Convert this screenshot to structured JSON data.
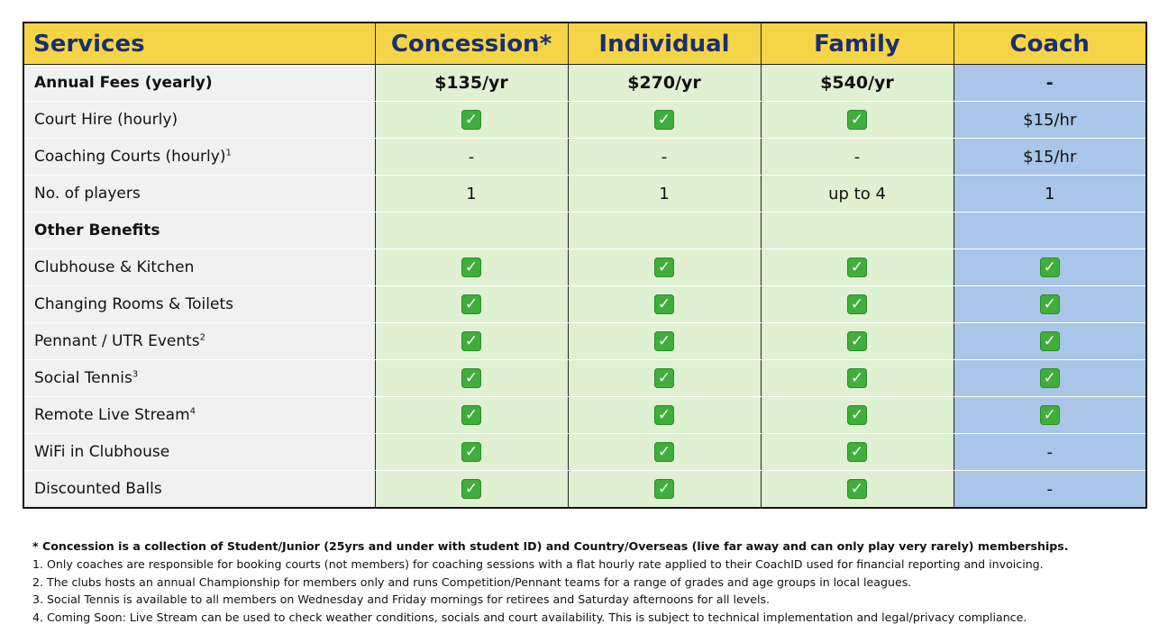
{
  "table": {
    "headers": [
      "Services",
      "Concession*",
      "Individual",
      "Family",
      "Coach"
    ],
    "rows": [
      {
        "label": "Annual Fees (yearly)",
        "sup": "",
        "bold": true,
        "cells": [
          "$135/yr",
          "$270/yr",
          "$540/yr",
          "-"
        ]
      },
      {
        "label": "Court Hire (hourly)",
        "sup": "",
        "bold": false,
        "cells": [
          "check",
          "check",
          "check",
          "$15/hr"
        ]
      },
      {
        "label": "Coaching Courts (hourly)",
        "sup": "1",
        "bold": false,
        "cells": [
          "-",
          "-",
          "-",
          "$15/hr"
        ]
      },
      {
        "label": "No. of players",
        "sup": "",
        "bold": false,
        "cells": [
          "1",
          "1",
          "up to 4",
          "1"
        ]
      },
      {
        "label": "Other Benefits",
        "sup": "",
        "bold": true,
        "cells": [
          "",
          "",
          "",
          ""
        ]
      },
      {
        "label": "Clubhouse & Kitchen",
        "sup": "",
        "bold": false,
        "cells": [
          "check",
          "check",
          "check",
          "check"
        ]
      },
      {
        "label": "Changing Rooms & Toilets",
        "sup": "",
        "bold": false,
        "cells": [
          "check",
          "check",
          "check",
          "check"
        ]
      },
      {
        "label": "Pennant / UTR Events",
        "sup": "2",
        "bold": false,
        "cells": [
          "check",
          "check",
          "check",
          "check"
        ]
      },
      {
        "label": "Social Tennis",
        "sup": "3",
        "bold": false,
        "cells": [
          "check",
          "check",
          "check",
          "check"
        ]
      },
      {
        "label": "Remote Live Stream",
        "sup": "4",
        "bold": false,
        "cells": [
          "check",
          "check",
          "check",
          "check"
        ]
      },
      {
        "label": "WiFi in Clubhouse",
        "sup": "",
        "bold": false,
        "cells": [
          "check",
          "check",
          "check",
          "-"
        ]
      },
      {
        "label": "Discounted Balls",
        "sup": "",
        "bold": false,
        "cells": [
          "check",
          "check",
          "check",
          "-"
        ]
      }
    ]
  },
  "icons": {
    "check": "check-mark-button-icon"
  },
  "colors": {
    "header_bg": "#f5d547",
    "header_text": "#1b2f6e",
    "member_bg": "#dff0d3",
    "coach_bg": "#a9c6e8",
    "label_bg": "#f1f1f1",
    "check": "#3fae3b"
  },
  "notes": [
    "* Concession is a collection of Student/Junior (25yrs and under with student ID) and Country/Overseas (live far away and can only play very rarely) memberships.",
    "1. Only coaches are responsible for booking courts (not members) for coaching sessions with a flat hourly rate applied to their CoachID used for financial reporting and invoicing.",
    "2. The clubs hosts an annual Championship for members only and runs Competition/Pennant teams for a range of grades and age groups in local leagues.",
    "3. Social Tennis is available to all members on Wednesday and Friday mornings for retirees and Saturday afternoons for all levels.",
    "4. Coming Soon: Live Stream can be used to check weather conditions, socials and court availability. This is subject to technical implementation and legal/privacy compliance."
  ]
}
